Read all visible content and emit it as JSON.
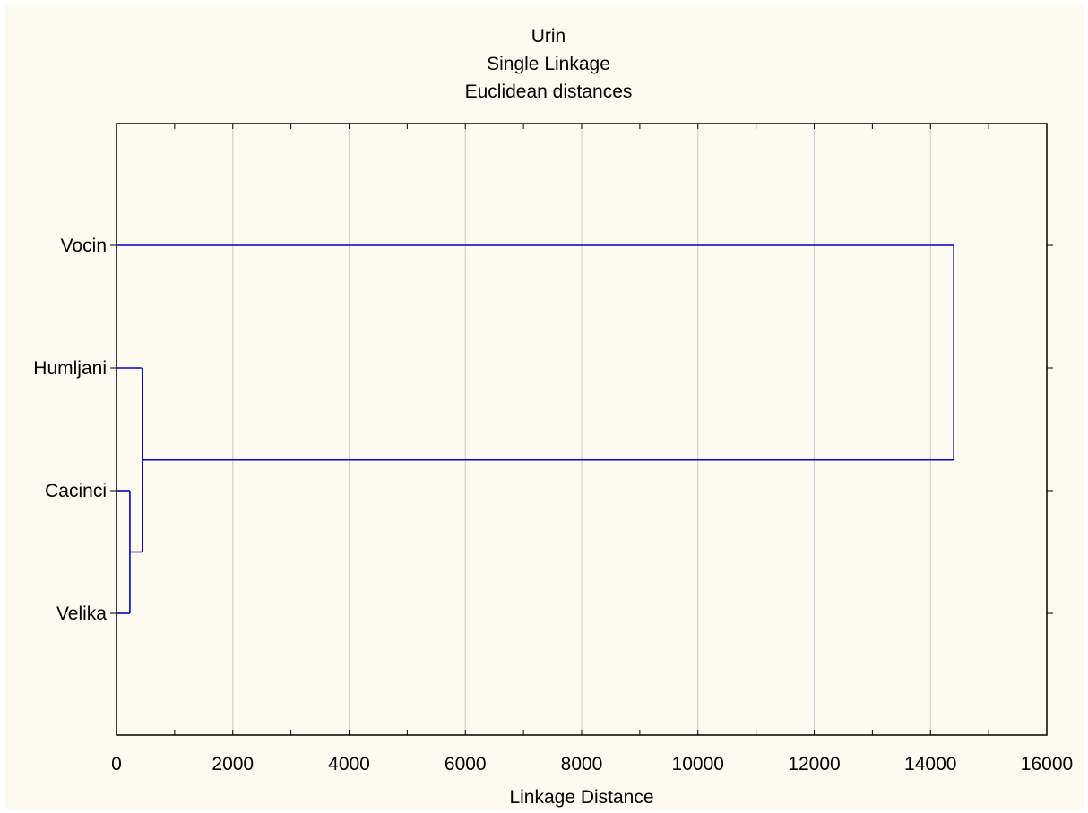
{
  "chart_data": {
    "type": "dendrogram",
    "title": [
      "Urin",
      "Single Linkage",
      "Euclidean distances"
    ],
    "xlabel": "Linkage Distance",
    "ylabel": "",
    "xlim": [
      0,
      16000
    ],
    "xticks": [
      0,
      2000,
      4000,
      6000,
      8000,
      10000,
      12000,
      14000,
      16000
    ],
    "grid": true,
    "leaves": [
      "Vocin",
      "Humljani",
      "Cacinci",
      "Velika"
    ],
    "merges": [
      {
        "members": [
          "Cacinci",
          "Velika"
        ],
        "distance": 230
      },
      {
        "members": [
          "Humljani",
          "Cacinci+Velika"
        ],
        "distance": 450
      },
      {
        "members": [
          "Vocin",
          "Humljani+Cacinci+Velika"
        ],
        "distance": 14400
      }
    ],
    "line_color": "#0000cc",
    "grid_color": "#d0d0d0",
    "background_color": "#fdfbef"
  }
}
